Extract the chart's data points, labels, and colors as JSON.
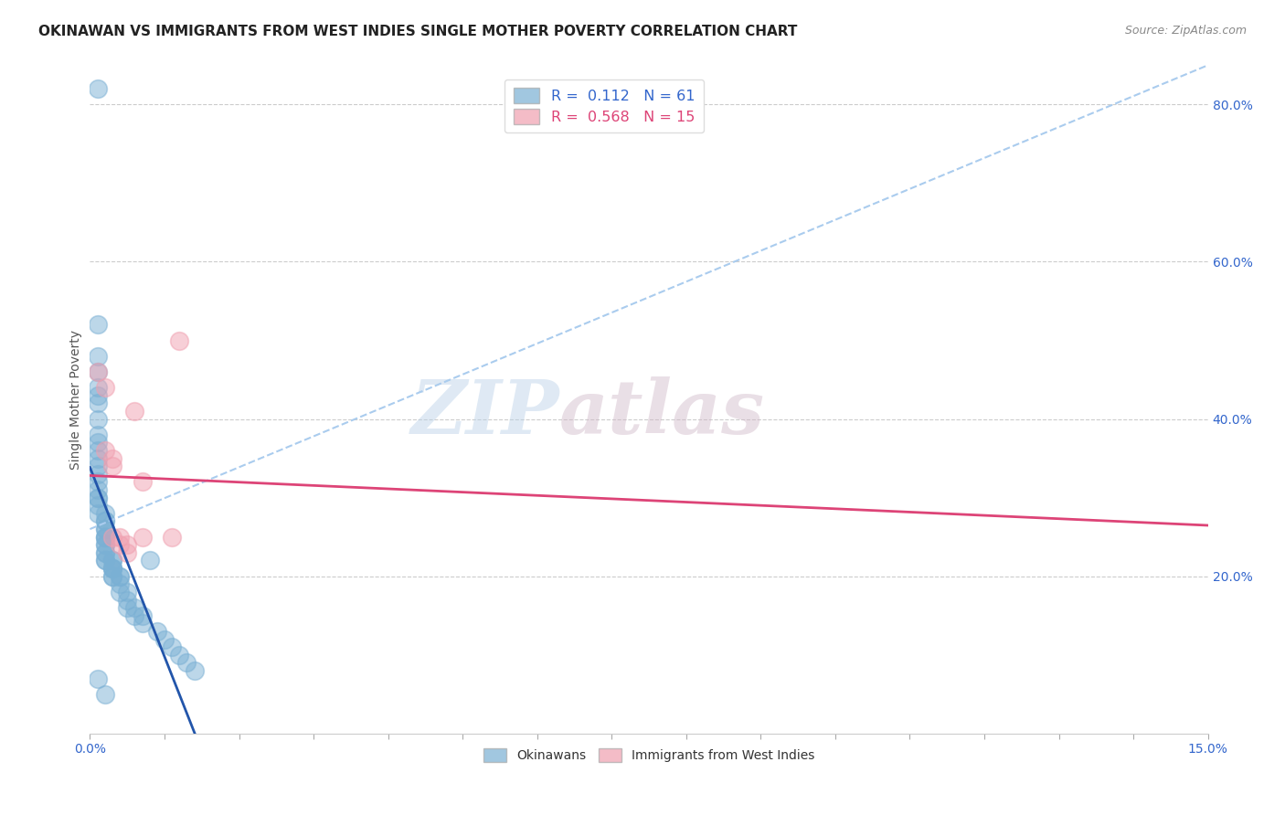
{
  "title": "OKINAWAN VS IMMIGRANTS FROM WEST INDIES SINGLE MOTHER POVERTY CORRELATION CHART",
  "source": "Source: ZipAtlas.com",
  "ylabel": "Single Mother Poverty",
  "xlim": [
    0.0,
    0.15
  ],
  "ylim": [
    0.0,
    0.85
  ],
  "blue_r": 0.112,
  "blue_n": 61,
  "pink_r": 0.568,
  "pink_n": 15,
  "background_color": "#ffffff",
  "blue_color": "#7ab0d4",
  "pink_color": "#f0a0b0",
  "blue_line_color": "#2255aa",
  "pink_line_color": "#dd4477",
  "blue_dashed_color": "#aaccee",
  "blue_dots_x": [
    0.001,
    0.001,
    0.001,
    0.001,
    0.001,
    0.001,
    0.001,
    0.001,
    0.001,
    0.001,
    0.001,
    0.001,
    0.001,
    0.001,
    0.001,
    0.001,
    0.001,
    0.001,
    0.001,
    0.001,
    0.002,
    0.002,
    0.002,
    0.002,
    0.002,
    0.002,
    0.002,
    0.002,
    0.002,
    0.002,
    0.002,
    0.002,
    0.002,
    0.002,
    0.003,
    0.003,
    0.003,
    0.003,
    0.003,
    0.003,
    0.003,
    0.004,
    0.004,
    0.004,
    0.004,
    0.005,
    0.005,
    0.005,
    0.006,
    0.006,
    0.007,
    0.007,
    0.008,
    0.009,
    0.01,
    0.011,
    0.012,
    0.013,
    0.014,
    0.001,
    0.002
  ],
  "blue_dots_y": [
    0.82,
    0.52,
    0.48,
    0.46,
    0.44,
    0.43,
    0.42,
    0.4,
    0.38,
    0.37,
    0.36,
    0.35,
    0.34,
    0.33,
    0.32,
    0.31,
    0.3,
    0.3,
    0.29,
    0.28,
    0.28,
    0.27,
    0.27,
    0.26,
    0.26,
    0.25,
    0.25,
    0.25,
    0.24,
    0.24,
    0.23,
    0.23,
    0.22,
    0.22,
    0.22,
    0.22,
    0.21,
    0.21,
    0.21,
    0.2,
    0.2,
    0.2,
    0.2,
    0.19,
    0.18,
    0.18,
    0.17,
    0.16,
    0.16,
    0.15,
    0.15,
    0.14,
    0.22,
    0.13,
    0.12,
    0.11,
    0.1,
    0.09,
    0.08,
    0.07,
    0.05
  ],
  "pink_dots_x": [
    0.001,
    0.002,
    0.002,
    0.003,
    0.003,
    0.003,
    0.004,
    0.004,
    0.005,
    0.005,
    0.006,
    0.007,
    0.007,
    0.011,
    0.012
  ],
  "pink_dots_y": [
    0.46,
    0.44,
    0.36,
    0.35,
    0.34,
    0.25,
    0.25,
    0.24,
    0.24,
    0.23,
    0.41,
    0.32,
    0.25,
    0.25,
    0.5
  ],
  "yticks": [
    0.0,
    0.2,
    0.4,
    0.6,
    0.8
  ],
  "ytick_labels": [
    "",
    "20.0%",
    "40.0%",
    "60.0%",
    "80.0%"
  ],
  "xtick_pos": [
    0.0,
    0.15
  ],
  "xtick_labels": [
    "0.0%",
    "15.0%"
  ]
}
